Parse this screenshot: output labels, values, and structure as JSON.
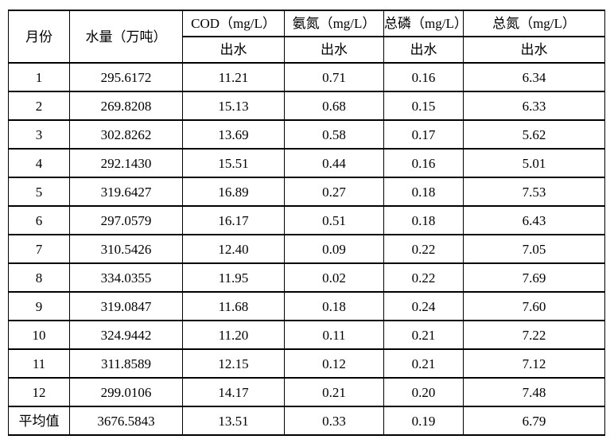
{
  "chart_data": {
    "type": "table",
    "header": {
      "month": "月份",
      "water": "水量（万吨）",
      "cod": "COD（mg/L）",
      "nh3n": "氨氮（mg/L）",
      "tp": "总磷（mg/L）",
      "tn": "总氮（mg/L）",
      "sub": "出水"
    },
    "rows": [
      [
        "1",
        "295.6172",
        "11.21",
        "0.71",
        "0.16",
        "6.34"
      ],
      [
        "2",
        "269.8208",
        "15.13",
        "0.68",
        "0.15",
        "6.33"
      ],
      [
        "3",
        "302.8262",
        "13.69",
        "0.58",
        "0.17",
        "5.62"
      ],
      [
        "4",
        "292.1430",
        "15.51",
        "0.44",
        "0.16",
        "5.01"
      ],
      [
        "5",
        "319.6427",
        "16.89",
        "0.27",
        "0.18",
        "7.53"
      ],
      [
        "6",
        "297.0579",
        "16.17",
        "0.51",
        "0.18",
        "6.43"
      ],
      [
        "7",
        "310.5426",
        "12.40",
        "0.09",
        "0.22",
        "7.05"
      ],
      [
        "8",
        "334.0355",
        "11.95",
        "0.02",
        "0.22",
        "7.69"
      ],
      [
        "9",
        "319.0847",
        "11.68",
        "0.18",
        "0.24",
        "7.60"
      ],
      [
        "10",
        "324.9442",
        "11.20",
        "0.11",
        "0.21",
        "7.22"
      ],
      [
        "11",
        "311.8589",
        "12.15",
        "0.12",
        "0.21",
        "7.12"
      ],
      [
        "12",
        "299.0106",
        "14.17",
        "0.21",
        "0.20",
        "7.48"
      ],
      [
        "平均值",
        "3676.5843",
        "13.51",
        "0.33",
        "0.19",
        "6.79"
      ]
    ]
  }
}
